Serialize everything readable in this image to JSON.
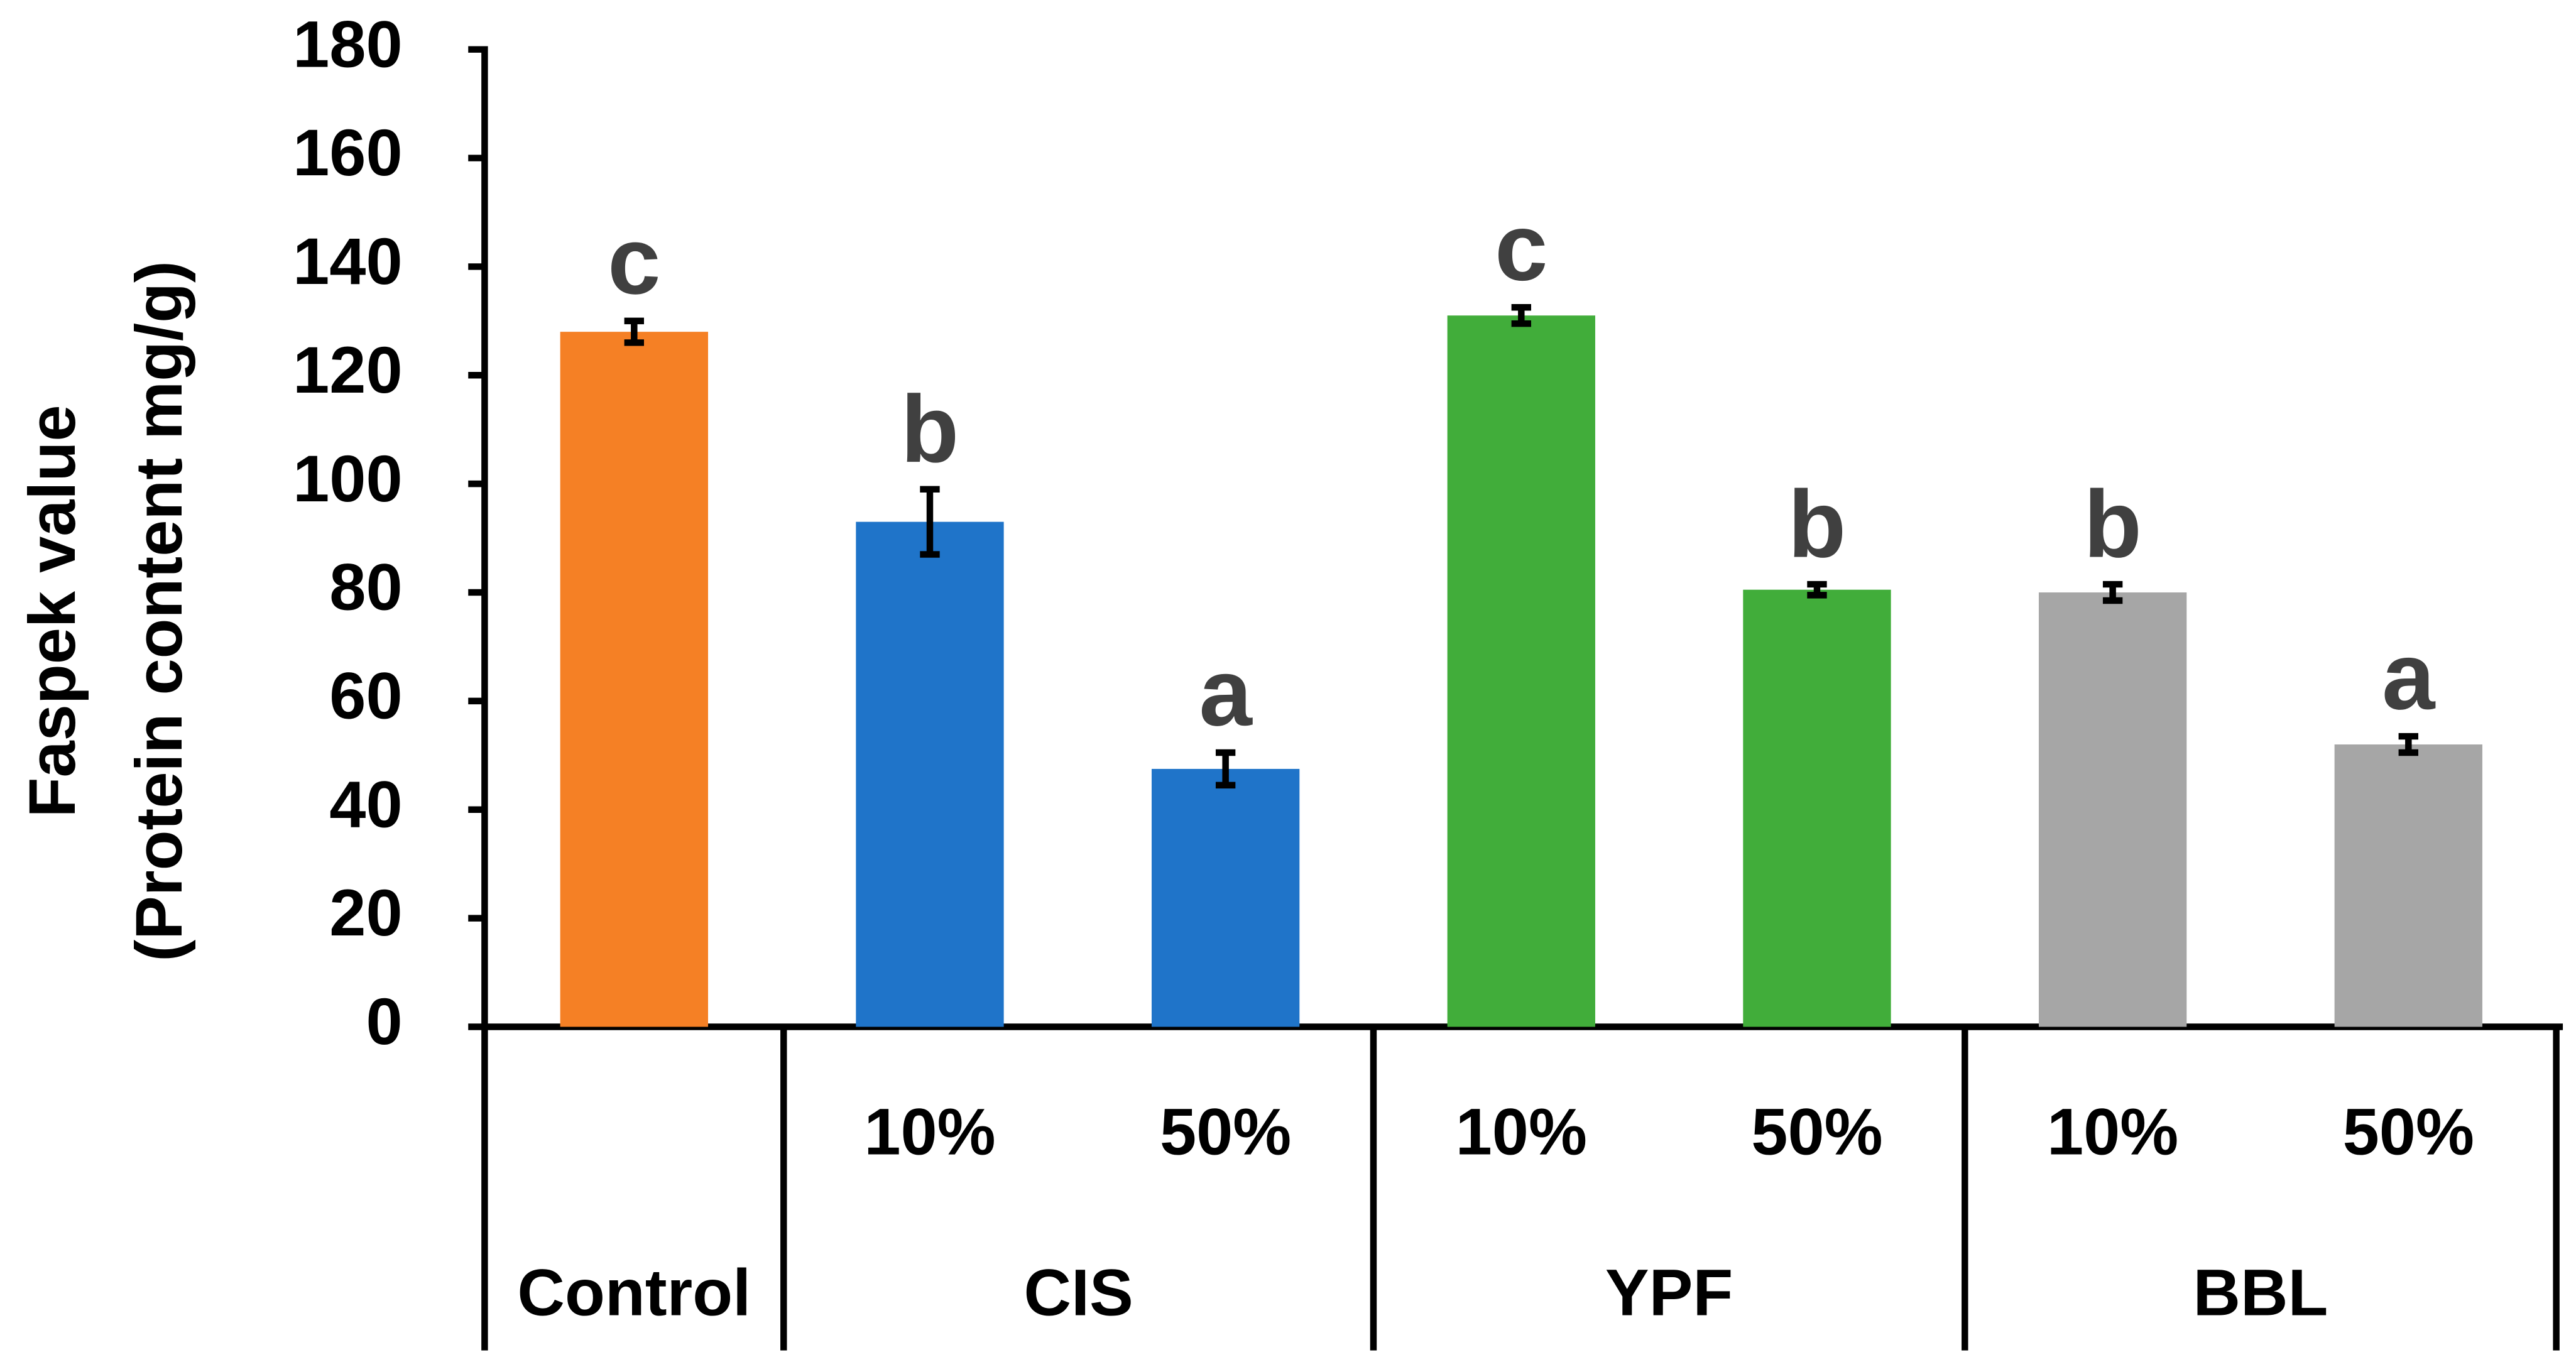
{
  "chart_data": {
    "type": "bar",
    "y_label_lines": [
      "Faspek value",
      "(Protein content  mg/g)"
    ],
    "ylim": [
      0,
      180
    ],
    "yticks": [
      0,
      20,
      40,
      60,
      80,
      100,
      120,
      140,
      160,
      180
    ],
    "groups": [
      {
        "name": "Control",
        "color": "#f58025",
        "categories": [
          null
        ],
        "values": [
          128
        ],
        "errors": [
          2
        ],
        "letters": [
          "c"
        ]
      },
      {
        "name": "CIS",
        "color": "#1f74c9",
        "categories": [
          "10%",
          "50%"
        ],
        "values": [
          93,
          47.5
        ],
        "errors": [
          6,
          3
        ],
        "letters": [
          "b",
          "a"
        ]
      },
      {
        "name": "YPF",
        "color": "#41ad3a",
        "categories": [
          "10%",
          "50%"
        ],
        "values": [
          131,
          80.5
        ],
        "errors": [
          1.5,
          1
        ],
        "letters": [
          "c",
          "b"
        ]
      },
      {
        "name": "BBL",
        "color": "#a6a6a6",
        "categories": [
          "10%",
          "50%"
        ],
        "values": [
          80,
          52
        ],
        "errors": [
          1.5,
          1.5
        ],
        "letters": [
          "b",
          "a"
        ]
      }
    ]
  }
}
